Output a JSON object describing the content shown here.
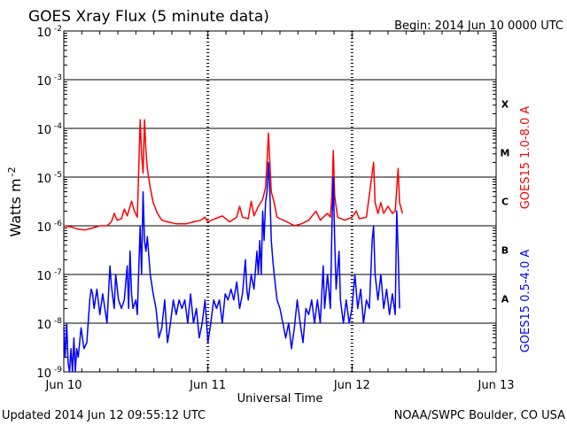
{
  "chart_data": {
    "type": "line",
    "title": "GOES Xray Flux (5 minute data)",
    "begin_label": "Begin:  2014 Jun 10 0000 UTC",
    "ylabel": "Watts m",
    "ylabel_superscript": "-2",
    "xlabel": "Universal Time",
    "scale": "log",
    "ylim": [
      1e-09,
      0.01
    ],
    "xlim_days": [
      0,
      3
    ],
    "y_ticks": [
      {
        "value": 0.01,
        "mantissa": "10",
        "exp": "-2"
      },
      {
        "value": 0.001,
        "mantissa": "10",
        "exp": "-3"
      },
      {
        "value": 0.0001,
        "mantissa": "10",
        "exp": "-4"
      },
      {
        "value": 1e-05,
        "mantissa": "10",
        "exp": "-5"
      },
      {
        "value": 1e-06,
        "mantissa": "10",
        "exp": "-6"
      },
      {
        "value": 1e-07,
        "mantissa": "10",
        "exp": "-7"
      },
      {
        "value": 1e-08,
        "mantissa": "10",
        "exp": "-8"
      },
      {
        "value": 1e-09,
        "mantissa": "10",
        "exp": "-9"
      }
    ],
    "x_ticks": [
      {
        "day": 0,
        "label": "Jun 10"
      },
      {
        "day": 1,
        "label": "Jun 11"
      },
      {
        "day": 2,
        "label": "Jun 12"
      },
      {
        "day": 3,
        "label": "Jun 13"
      }
    ],
    "flare_classes": [
      {
        "label": "X",
        "value": 0.000316
      },
      {
        "label": "M",
        "value": 3.16e-05
      },
      {
        "label": "C",
        "value": 3.16e-06
      },
      {
        "label": "B",
        "value": 3.16e-07
      },
      {
        "label": "A",
        "value": 3.16e-08
      }
    ],
    "grid": true,
    "legend": "right-vertical",
    "series": [
      {
        "name": "GOES15 1.0-8.0 A",
        "color": "#ff0000",
        "points": [
          [
            0.0,
            1e-06
          ],
          [
            0.05,
            9.5e-07
          ],
          [
            0.1,
            8.5e-07
          ],
          [
            0.15,
            8.2e-07
          ],
          [
            0.2,
            9e-07
          ],
          [
            0.25,
            1e-06
          ],
          [
            0.3,
            1e-06
          ],
          [
            0.33,
            1.2e-06
          ],
          [
            0.35,
            1.8e-06
          ],
          [
            0.37,
            1.3e-06
          ],
          [
            0.4,
            1.4e-06
          ],
          [
            0.42,
            2.2e-06
          ],
          [
            0.44,
            1.6e-06
          ],
          [
            0.47,
            3.2e-06
          ],
          [
            0.49,
            2e-06
          ],
          [
            0.51,
            1.5e-06
          ],
          [
            0.53,
            0.00015
          ],
          [
            0.54,
            3e-05
          ],
          [
            0.55,
            1.2e-05
          ],
          [
            0.56,
            0.00015
          ],
          [
            0.57,
            3.5e-05
          ],
          [
            0.58,
            1.5e-05
          ],
          [
            0.6,
            6e-06
          ],
          [
            0.62,
            3e-06
          ],
          [
            0.65,
            1.8e-06
          ],
          [
            0.68,
            1.3e-06
          ],
          [
            0.72,
            1.2e-06
          ],
          [
            0.78,
            1.1e-06
          ],
          [
            0.85,
            1.1e-06
          ],
          [
            0.9,
            1.2e-06
          ],
          [
            0.95,
            1.3e-06
          ],
          [
            0.98,
            1.5e-06
          ],
          [
            1.0,
            1.2e-06
          ],
          [
            1.05,
            1.4e-06
          ],
          [
            1.1,
            1.6e-06
          ],
          [
            1.15,
            1.2e-06
          ],
          [
            1.2,
            1.5e-06
          ],
          [
            1.22,
            2.5e-06
          ],
          [
            1.24,
            1.5e-06
          ],
          [
            1.28,
            1.4e-06
          ],
          [
            1.3,
            3.2e-06
          ],
          [
            1.32,
            1.6e-06
          ],
          [
            1.35,
            2.5e-06
          ],
          [
            1.38,
            3.5e-06
          ],
          [
            1.4,
            6e-06
          ],
          [
            1.41,
            2e-05
          ],
          [
            1.42,
            8e-05
          ],
          [
            1.43,
            2e-05
          ],
          [
            1.44,
            5e-06
          ],
          [
            1.46,
            3e-06
          ],
          [
            1.48,
            1.5e-06
          ],
          [
            1.5,
            1.4e-06
          ],
          [
            1.55,
            1.2e-06
          ],
          [
            1.6,
            1e-06
          ],
          [
            1.65,
            1.1e-06
          ],
          [
            1.7,
            1.3e-06
          ],
          [
            1.75,
            2e-06
          ],
          [
            1.78,
            1.3e-06
          ],
          [
            1.8,
            1.5e-06
          ],
          [
            1.83,
            1.8e-06
          ],
          [
            1.85,
            1.5e-06
          ],
          [
            1.86,
            4e-06
          ],
          [
            1.87,
            3.5e-05
          ],
          [
            1.88,
            4e-06
          ],
          [
            1.9,
            1.5e-06
          ],
          [
            1.95,
            1.3e-06
          ],
          [
            2.0,
            1.5e-06
          ],
          [
            2.03,
            2e-06
          ],
          [
            2.05,
            1.4e-06
          ],
          [
            2.1,
            1.5e-06
          ],
          [
            2.15,
            2e-05
          ],
          [
            2.16,
            3e-06
          ],
          [
            2.18,
            1.8e-06
          ],
          [
            2.2,
            3e-06
          ],
          [
            2.22,
            1.8e-06
          ],
          [
            2.25,
            2.5e-06
          ],
          [
            2.28,
            1.8e-06
          ],
          [
            2.3,
            2e-06
          ],
          [
            2.32,
            1.5e-05
          ],
          [
            2.33,
            3e-06
          ],
          [
            2.35,
            1.8e-06
          ]
        ]
      },
      {
        "name": "GOES15 0.5-4.0 A",
        "color": "#0000ff",
        "points": [
          [
            0.0,
            8e-09
          ],
          [
            0.01,
            2e-09
          ],
          [
            0.02,
            1e-08
          ],
          [
            0.03,
            1.5e-09
          ],
          [
            0.04,
            1e-09
          ],
          [
            0.05,
            3e-09
          ],
          [
            0.06,
            1e-09
          ],
          [
            0.07,
            5e-09
          ],
          [
            0.08,
            1e-09
          ],
          [
            0.09,
            3e-09
          ],
          [
            0.1,
            2e-09
          ],
          [
            0.12,
            8e-09
          ],
          [
            0.14,
            3e-09
          ],
          [
            0.16,
            4e-09
          ],
          [
            0.18,
            3e-08
          ],
          [
            0.19,
            5e-08
          ],
          [
            0.2,
            4e-08
          ],
          [
            0.21,
            2e-08
          ],
          [
            0.23,
            5e-08
          ],
          [
            0.25,
            1.5e-08
          ],
          [
            0.27,
            4e-08
          ],
          [
            0.3,
            1e-08
          ],
          [
            0.32,
            1.5e-07
          ],
          [
            0.33,
            6e-08
          ],
          [
            0.35,
            2e-08
          ],
          [
            0.36,
            1e-07
          ],
          [
            0.38,
            3e-08
          ],
          [
            0.4,
            2e-08
          ],
          [
            0.42,
            3e-08
          ],
          [
            0.44,
            1.5e-07
          ],
          [
            0.45,
            2e-08
          ],
          [
            0.46,
            3e-07
          ],
          [
            0.47,
            4e-08
          ],
          [
            0.48,
            2e-08
          ],
          [
            0.5,
            3e-08
          ],
          [
            0.51,
            1.5e-08
          ],
          [
            0.53,
            1e-06
          ],
          [
            0.54,
            1e-07
          ],
          [
            0.55,
            5e-06
          ],
          [
            0.56,
            5e-07
          ],
          [
            0.57,
            3e-07
          ],
          [
            0.58,
            6e-07
          ],
          [
            0.6,
            1e-07
          ],
          [
            0.62,
            4e-08
          ],
          [
            0.64,
            2e-08
          ],
          [
            0.66,
            5e-09
          ],
          [
            0.68,
            8e-09
          ],
          [
            0.7,
            3e-08
          ],
          [
            0.72,
            4e-09
          ],
          [
            0.74,
            1e-08
          ],
          [
            0.76,
            3e-08
          ],
          [
            0.78,
            1.5e-08
          ],
          [
            0.8,
            3e-08
          ],
          [
            0.82,
            2e-08
          ],
          [
            0.84,
            3e-08
          ],
          [
            0.86,
            1e-08
          ],
          [
            0.88,
            4e-08
          ],
          [
            0.9,
            1e-08
          ],
          [
            0.92,
            2e-08
          ],
          [
            0.94,
            5e-09
          ],
          [
            0.96,
            1e-08
          ],
          [
            0.98,
            3e-08
          ],
          [
            1.0,
            4e-09
          ],
          [
            1.02,
            1e-08
          ],
          [
            1.04,
            3e-08
          ],
          [
            1.06,
            2e-08
          ],
          [
            1.08,
            3e-08
          ],
          [
            1.1,
            1e-08
          ],
          [
            1.12,
            4e-08
          ],
          [
            1.14,
            3e-08
          ],
          [
            1.16,
            5e-08
          ],
          [
            1.18,
            3e-08
          ],
          [
            1.2,
            7e-08
          ],
          [
            1.22,
            2e-08
          ],
          [
            1.24,
            4e-08
          ],
          [
            1.26,
            2e-07
          ],
          [
            1.27,
            5e-08
          ],
          [
            1.28,
            3e-08
          ],
          [
            1.3,
            1e-07
          ],
          [
            1.32,
            5e-08
          ],
          [
            1.34,
            3e-07
          ],
          [
            1.35,
            1e-07
          ],
          [
            1.36,
            5e-07
          ],
          [
            1.37,
            1e-07
          ],
          [
            1.38,
            2e-06
          ],
          [
            1.39,
            5e-07
          ],
          [
            1.4,
            3e-06
          ],
          [
            1.41,
            5e-06
          ],
          [
            1.42,
            2e-05
          ],
          [
            1.43,
            5e-06
          ],
          [
            1.44,
            5e-07
          ],
          [
            1.45,
            2e-07
          ],
          [
            1.46,
            1e-07
          ],
          [
            1.48,
            3e-08
          ],
          [
            1.5,
            2e-08
          ],
          [
            1.52,
            1e-08
          ],
          [
            1.54,
            5e-09
          ],
          [
            1.56,
            1e-08
          ],
          [
            1.58,
            3e-09
          ],
          [
            1.6,
            8e-09
          ],
          [
            1.62,
            3e-08
          ],
          [
            1.64,
            1e-08
          ],
          [
            1.66,
            4e-09
          ],
          [
            1.68,
            2e-08
          ],
          [
            1.7,
            1.5e-08
          ],
          [
            1.72,
            3e-08
          ],
          [
            1.74,
            1e-08
          ],
          [
            1.76,
            3e-08
          ],
          [
            1.78,
            1e-08
          ],
          [
            1.8,
            1.5e-07
          ],
          [
            1.81,
            2e-08
          ],
          [
            1.83,
            1e-07
          ],
          [
            1.85,
            2e-08
          ],
          [
            1.86,
            8e-07
          ],
          [
            1.87,
            1e-05
          ],
          [
            1.88,
            5e-07
          ],
          [
            1.89,
            5e-08
          ],
          [
            1.91,
            3e-07
          ],
          [
            1.92,
            3e-08
          ],
          [
            1.94,
            1e-08
          ],
          [
            1.96,
            3e-08
          ],
          [
            1.98,
            1e-08
          ],
          [
            2.0,
            2e-08
          ],
          [
            2.02,
            1e-07
          ],
          [
            2.04,
            2e-08
          ],
          [
            2.06,
            5e-08
          ],
          [
            2.08,
            1e-08
          ],
          [
            2.1,
            3e-08
          ],
          [
            2.12,
            2e-08
          ],
          [
            2.14,
            5e-07
          ],
          [
            2.15,
            1e-06
          ],
          [
            2.16,
            1e-07
          ],
          [
            2.18,
            3e-08
          ],
          [
            2.2,
            1e-07
          ],
          [
            2.22,
            2e-08
          ],
          [
            2.24,
            5e-08
          ],
          [
            2.26,
            1.5e-08
          ],
          [
            2.28,
            4e-08
          ],
          [
            2.3,
            1.5e-08
          ],
          [
            2.31,
            2e-06
          ],
          [
            2.32,
            3e-07
          ],
          [
            2.33,
            2e-08
          ]
        ]
      }
    ]
  },
  "footer": {
    "updated": "Updated 2014 Jun 12 09:55:12 UTC",
    "credit": "NOAA/SWPC Boulder, CO USA"
  }
}
